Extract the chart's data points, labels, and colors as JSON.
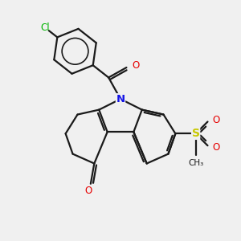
{
  "bg_color": "#f0f0f0",
  "bond_color": "#1a1a1a",
  "n_color": "#1414e6",
  "o_color": "#e60000",
  "s_color": "#c8c800",
  "cl_color": "#00b400",
  "lw": 1.6,
  "xlim": [
    0,
    10
  ],
  "ylim": [
    0,
    10
  ]
}
